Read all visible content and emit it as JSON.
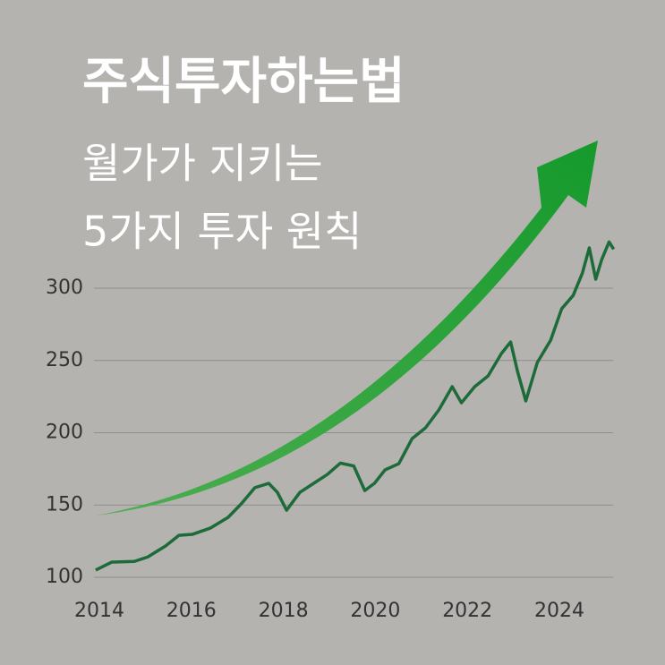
{
  "chart_data": {
    "type": "line",
    "title": "주식투자하는법",
    "subtitle": [
      "월가가 지키는",
      "5가지 투자 원칙"
    ],
    "x": [
      2013.92,
      2014.27,
      2014.76,
      2015.05,
      2015.44,
      2015.73,
      2016.02,
      2016.41,
      2016.8,
      2017.09,
      2017.38,
      2017.68,
      2017.87,
      2018.07,
      2018.36,
      2018.66,
      2018.95,
      2019.24,
      2019.53,
      2019.77,
      2019.98,
      2020.21,
      2020.51,
      2020.8,
      2021.09,
      2021.38,
      2021.67,
      2021.87,
      2022.16,
      2022.45,
      2022.74,
      2022.94,
      2023.09,
      2023.27,
      2023.52,
      2023.81,
      2024.05,
      2024.3,
      2024.5,
      2024.65,
      2024.79,
      2024.92,
      2025.08,
      2025.18
    ],
    "series": [
      {
        "color": "#1e6b3a",
        "values": [
          105,
          110.5,
          111,
          114,
          121.7,
          129,
          129.7,
          134,
          141.5,
          151,
          162,
          165,
          158.8,
          146.4,
          158.8,
          165,
          171,
          179,
          177,
          160,
          165,
          174.3,
          178.6,
          196,
          203.4,
          215.8,
          231.9,
          220.7,
          231.9,
          239.3,
          254.8,
          262.8,
          242.4,
          222,
          248.6,
          264,
          285.8,
          295,
          310.5,
          327.9,
          306.2,
          319.8,
          332,
          327
        ]
      }
    ],
    "xlim": [
      2013.5,
      2025.5
    ],
    "xticks": [
      2014,
      2016,
      2018,
      2020,
      2022,
      2024
    ],
    "ylim": [
      100,
      335
    ],
    "yticks": [
      100,
      150,
      200,
      250,
      300
    ],
    "grid": true
  }
}
